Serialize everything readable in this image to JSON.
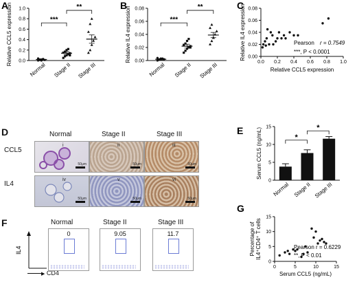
{
  "panels": {
    "A": {
      "label": "A"
    },
    "B": {
      "label": "B"
    },
    "C": {
      "label": "C"
    },
    "D": {
      "label": "D"
    },
    "E": {
      "label": "E"
    },
    "F": {
      "label": "F"
    },
    "G": {
      "label": "G"
    }
  },
  "chart_data": [
    {
      "id": "A",
      "type": "scatter",
      "categories": [
        "Normal",
        "Stage II",
        "Stage III"
      ],
      "ylabel": "Relative CCL5 expression",
      "ylim": [
        0,
        1.0
      ],
      "yticks": [
        "0.0",
        "0.2",
        "0.4",
        "0.6",
        "0.8",
        "1.0"
      ],
      "means": [
        0.02,
        0.14,
        0.41
      ],
      "sem": [
        0.01,
        0.03,
        0.08
      ],
      "points": [
        [
          0.0,
          0.01,
          0.02,
          0.03,
          0.01,
          0.04,
          0.02,
          0.0
        ],
        [
          0.05,
          0.08,
          0.1,
          0.12,
          0.14,
          0.15,
          0.17,
          0.2,
          0.22,
          0.1
        ],
        [
          0.15,
          0.2,
          0.3,
          0.38,
          0.45,
          0.55,
          0.7,
          0.8
        ]
      ],
      "significance": [
        {
          "label": "***"
        },
        {
          "label": "**"
        }
      ]
    },
    {
      "id": "B",
      "type": "scatter",
      "categories": [
        "Normal",
        "Stage II",
        "Stage III"
      ],
      "ylabel": "Relative IL4 expression",
      "ylim": [
        0,
        0.08
      ],
      "yticks": [
        "0.00",
        "0.02",
        "0.04",
        "0.06",
        "0.08"
      ],
      "means": [
        0.002,
        0.022,
        0.039
      ],
      "sem": [
        0.001,
        0.003,
        0.004
      ],
      "points": [
        [
          0.0,
          0.001,
          0.002,
          0.003,
          0.002,
          0.004,
          0.001,
          0.003
        ],
        [
          0.012,
          0.015,
          0.018,
          0.02,
          0.022,
          0.024,
          0.026,
          0.03,
          0.033,
          0.02
        ],
        [
          0.025,
          0.03,
          0.035,
          0.04,
          0.045,
          0.05,
          0.055,
          0.035
        ]
      ],
      "significance": [
        {
          "label": "***"
        },
        {
          "label": "**"
        }
      ]
    },
    {
      "id": "C",
      "type": "scatter",
      "xlabel": "Relative CCL5 expression",
      "ylabel": "Relative IL4 expression",
      "xlim": [
        0,
        1.0
      ],
      "ylim": [
        0,
        0.08
      ],
      "xticks": [
        "0.0",
        "0.2",
        "0.4",
        "0.6",
        "0.8",
        "1.0"
      ],
      "yticks": [
        "0.00",
        "0.02",
        "0.04",
        "0.06",
        "0.08"
      ],
      "x": [
        0.02,
        0.03,
        0.05,
        0.06,
        0.07,
        0.08,
        0.1,
        0.12,
        0.14,
        0.15,
        0.18,
        0.2,
        0.22,
        0.25,
        0.28,
        0.3,
        0.35,
        0.4,
        0.45,
        0.75,
        0.82
      ],
      "y": [
        0.015,
        0.02,
        0.025,
        0.018,
        0.03,
        0.045,
        0.02,
        0.04,
        0.035,
        0.02,
        0.025,
        0.03,
        0.04,
        0.03,
        0.035,
        0.03,
        0.04,
        0.035,
        0.035,
        0.055,
        0.063
      ],
      "annotation": {
        "pearson": "Pearson",
        "r_text": "r = 0.7549",
        "p_text": "***, P < 0.0001"
      }
    },
    {
      "id": "E",
      "type": "bar",
      "categories": [
        "Normal",
        "Stage II",
        "Stage III"
      ],
      "values": [
        3.8,
        7.6,
        11.6
      ],
      "errors": [
        0.8,
        0.9,
        0.6
      ],
      "ylabel": "Serum CCL5 (ng/mL)",
      "ylim": [
        0,
        15
      ],
      "yticks": [
        "0",
        "5",
        "10",
        "15"
      ],
      "significance": [
        {
          "label": "*"
        },
        {
          "label": "*"
        }
      ]
    },
    {
      "id": "G",
      "type": "scatter",
      "xlabel": "Serum CCL5 (ng/mL)",
      "ylabel_line1": "Percentage of",
      "ylabel_line2": "IL4⁺CD4⁺ T cells",
      "xlim": [
        0,
        15
      ],
      "ylim": [
        0,
        15
      ],
      "xticks": [
        "0",
        "5",
        "10",
        "15"
      ],
      "yticks": [
        "0",
        "5",
        "10",
        "15"
      ],
      "x": [
        1.2,
        2.5,
        3.2,
        3.6,
        4.5,
        5.0,
        5.5,
        6.5,
        7.0,
        7.5,
        8.0,
        9.0,
        9.5,
        10.0,
        10.5,
        11.0,
        11.5,
        12.0,
        12.5
      ],
      "y": [
        2.0,
        3.0,
        3.5,
        2.5,
        4.0,
        3.5,
        4.0,
        1.5,
        2.5,
        5.0,
        3.0,
        11.0,
        8.0,
        10.0,
        6.0,
        7.0,
        7.5,
        6.5,
        6.0
      ],
      "annotation": {
        "r_text": "Pearson  r = 0.6229",
        "p_text": "**, P < 0.01"
      }
    }
  ],
  "histology": {
    "columns": [
      "Normal",
      "Stage II",
      "Stage III"
    ],
    "rows": [
      "CCL5",
      "IL4"
    ],
    "roman": [
      "i",
      "ii",
      "iii",
      "iv",
      "v",
      "vi"
    ],
    "scalebar": "50μm"
  },
  "flow": {
    "columns": [
      "Normal",
      "Stage II",
      "Stage III"
    ],
    "values": [
      "0",
      "9.05",
      "11.7"
    ],
    "ylabel": "IL4",
    "xlabel": "CD4"
  },
  "colors": {
    "bar": "#111111",
    "point": "#111111",
    "gate": "#6a7bd4",
    "ccl5_normal": "#8a4fa8",
    "brown": "#a06a3c",
    "blue": "#7a86b8"
  }
}
